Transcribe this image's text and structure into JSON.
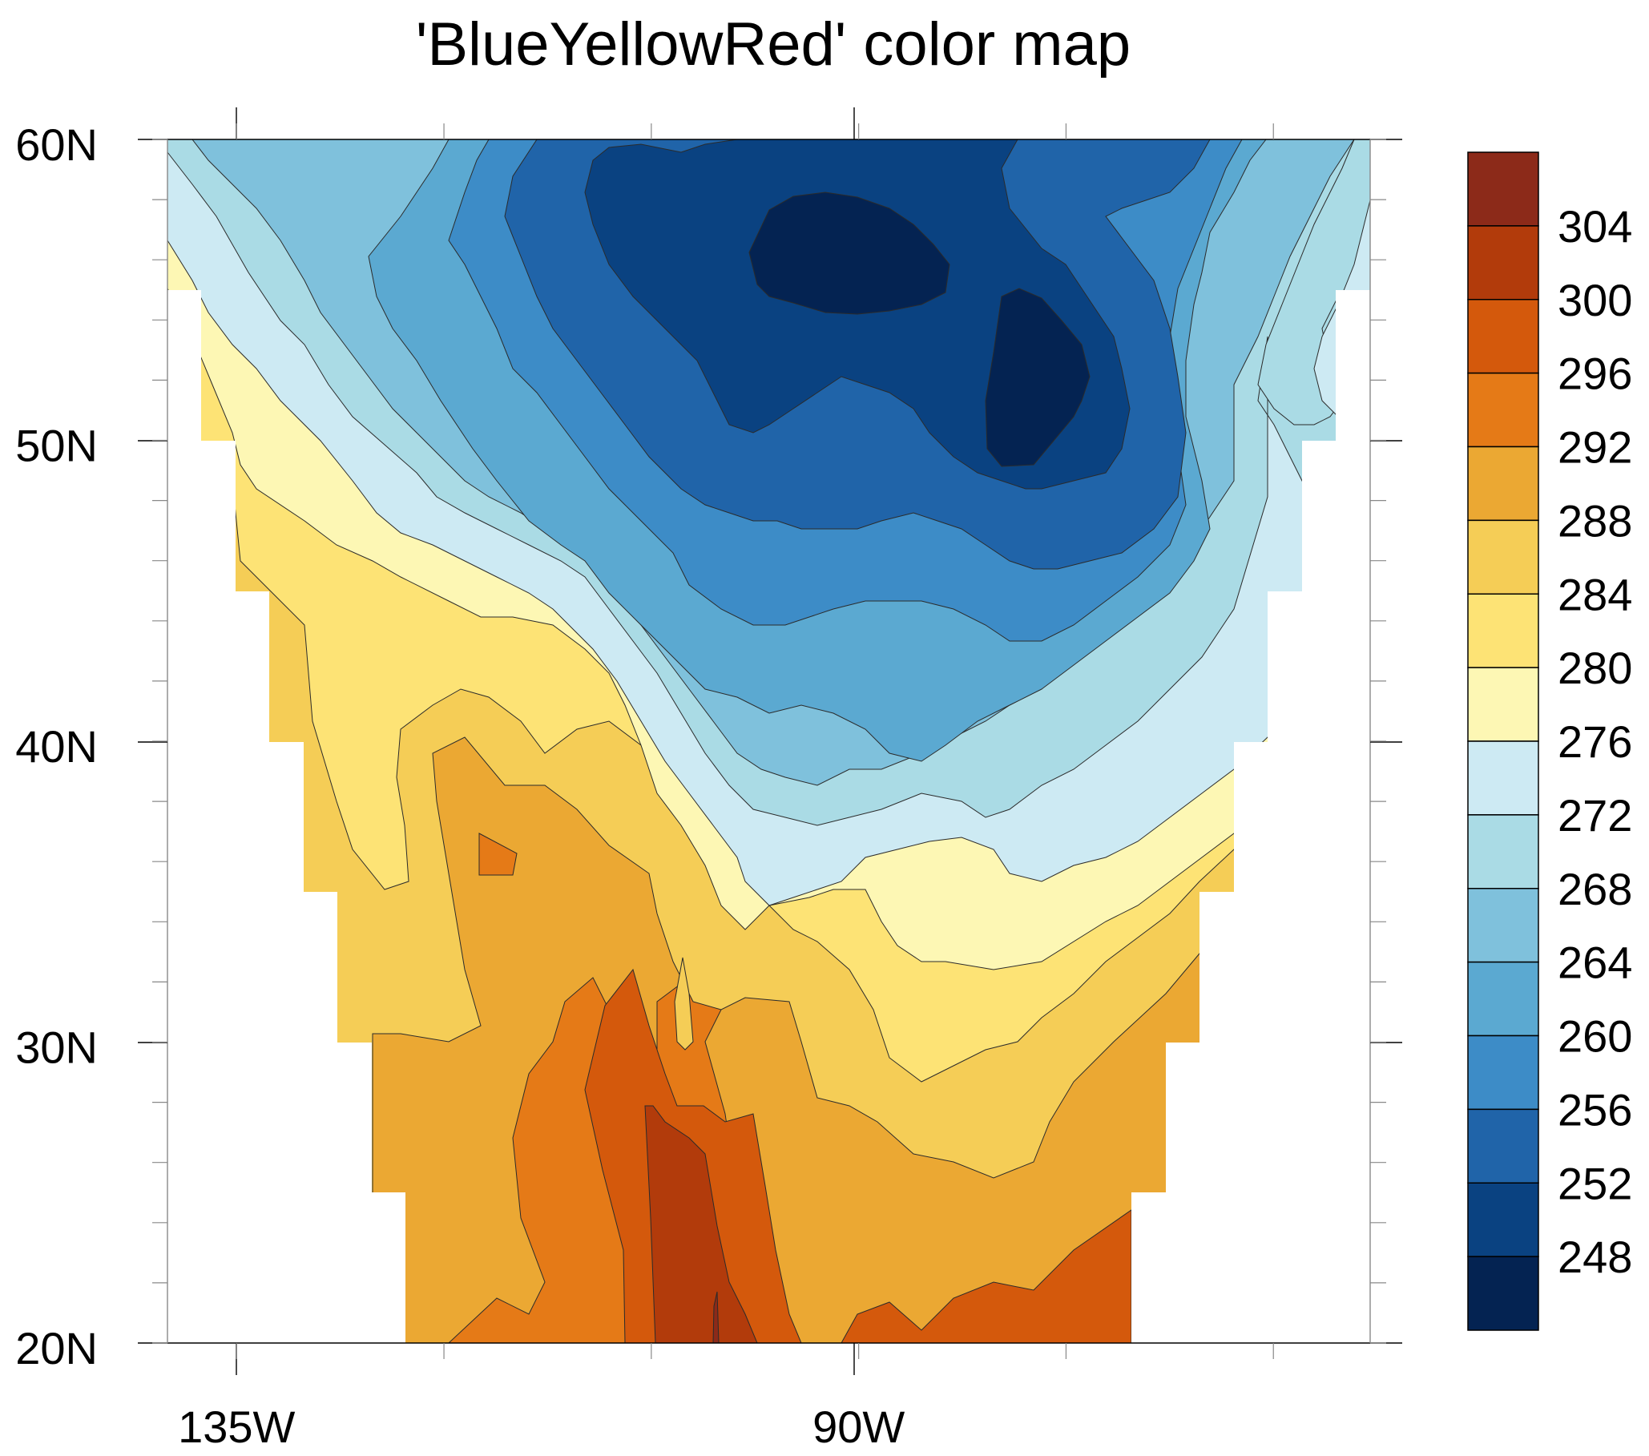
{
  "title": "'BlueYellowRed' color map",
  "map": {
    "lat_range": [
      20,
      60
    ],
    "lon_range": [
      -140,
      -53
    ],
    "lat_ticks": [
      {
        "value": 60,
        "label": "60N"
      },
      {
        "value": 50,
        "label": "50N"
      },
      {
        "value": 40,
        "label": "40N"
      },
      {
        "value": 30,
        "label": "30N"
      },
      {
        "value": 20,
        "label": "20N"
      }
    ],
    "lon_ticks": [
      {
        "value": -135,
        "label": "135W"
      },
      {
        "value": -90,
        "label": "90W"
      }
    ],
    "contour_levels": [
      248,
      252,
      256,
      260,
      264,
      268,
      272,
      276,
      280,
      284,
      288,
      292,
      296,
      300,
      304
    ],
    "contour_line_color": "#2b2b2b"
  },
  "colorbar": {
    "labels": [
      "304",
      "300",
      "296",
      "292",
      "288",
      "284",
      "280",
      "276",
      "272",
      "268",
      "264",
      "260",
      "256",
      "252",
      "248"
    ],
    "colors_top_to_bottom": [
      "#8c2a19",
      "#b23b0b",
      "#d4590c",
      "#e57a17",
      "#eba833",
      "#f5cd56",
      "#fde375",
      "#fdf7b4",
      "#cdeaf3",
      "#aadbe5",
      "#7fc1dc",
      "#5ba9d1",
      "#3d8cc7",
      "#2064a9",
      "#0a4281",
      "#042352"
    ]
  }
}
